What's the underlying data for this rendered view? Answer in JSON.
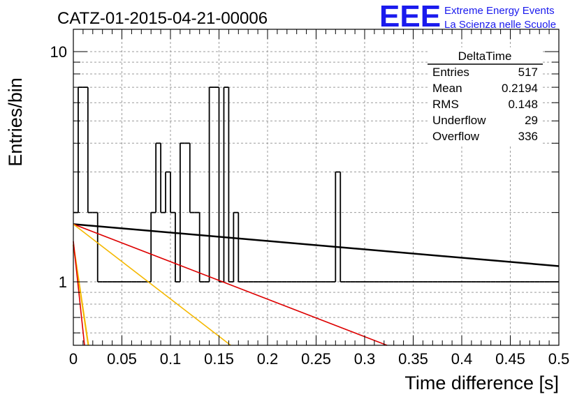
{
  "header": {
    "title": "CATZ-01-2015-04-21-00006",
    "logo_text": "EEE",
    "org_line1": "Extreme Energy Events",
    "org_line2": "La Scienza nelle Scuole"
  },
  "stats": {
    "name": "DeltaTime",
    "rows": [
      {
        "label": "Entries",
        "value": "517"
      },
      {
        "label": "Mean",
        "value": "0.2194"
      },
      {
        "label": "RMS",
        "value": "0.148"
      },
      {
        "label": "Underflow",
        "value": "29"
      },
      {
        "label": "Overflow",
        "value": "336"
      }
    ]
  },
  "colors": {
    "histogram": "#000000",
    "fit_black": "#000000",
    "fit_red": "#dd0000",
    "fit_orange": "#f5b800",
    "logo": "#1a1aee",
    "grid": "#9a9a9a"
  },
  "chart_data": {
    "type": "line",
    "title": "CATZ-01-2015-04-21-00006",
    "xlabel": "Time difference [s]",
    "ylabel": "Entries/bin",
    "xlim": [
      0,
      0.5
    ],
    "ylim": [
      0.53,
      12.5
    ],
    "yscale": "log",
    "grid": true,
    "xticks": [
      "0",
      "0.05",
      "0.1",
      "0.15",
      "0.2",
      "0.25",
      "0.3",
      "0.35",
      "0.4",
      "0.45",
      "0.5"
    ],
    "yticks": [
      "1",
      "10"
    ],
    "bin_width": 0.005,
    "histogram": [
      2,
      7,
      7,
      2,
      2,
      1,
      1,
      1,
      1,
      1,
      1,
      1,
      1,
      1,
      1,
      1,
      2,
      4,
      2,
      3,
      2,
      1,
      4,
      4,
      2,
      2,
      1,
      1,
      7,
      7,
      1,
      7,
      1,
      2,
      1,
      1,
      1,
      1,
      1,
      1,
      1,
      1,
      1,
      1,
      1,
      1,
      1,
      1,
      1,
      1,
      1,
      1,
      1,
      1,
      3,
      1,
      1,
      1,
      1,
      1,
      1,
      1,
      1,
      1,
      1,
      1,
      1,
      1,
      1,
      1,
      1,
      1,
      1,
      1,
      1,
      1,
      1,
      1,
      1,
      1,
      1,
      1,
      1,
      1,
      1,
      1,
      1,
      1,
      1,
      1,
      1,
      1,
      1,
      1,
      1,
      1,
      1,
      1,
      1,
      1
    ],
    "series": [
      {
        "values": [
          [
            0,
            1.78
          ],
          [
            0.5,
            1.17
          ]
        ]
      },
      {
        "values": [
          [
            0,
            1.78
          ],
          [
            0.323,
            0.53
          ]
        ]
      },
      {
        "values": [
          [
            0,
            1.78
          ],
          [
            0.162,
            0.53
          ]
        ]
      },
      {
        "values": [
          [
            0,
            1.45
          ],
          [
            0.0155,
            0.53
          ]
        ]
      },
      {
        "values": [
          [
            0,
            1.5
          ],
          [
            0.0115,
            0.53
          ]
        ]
      }
    ]
  }
}
